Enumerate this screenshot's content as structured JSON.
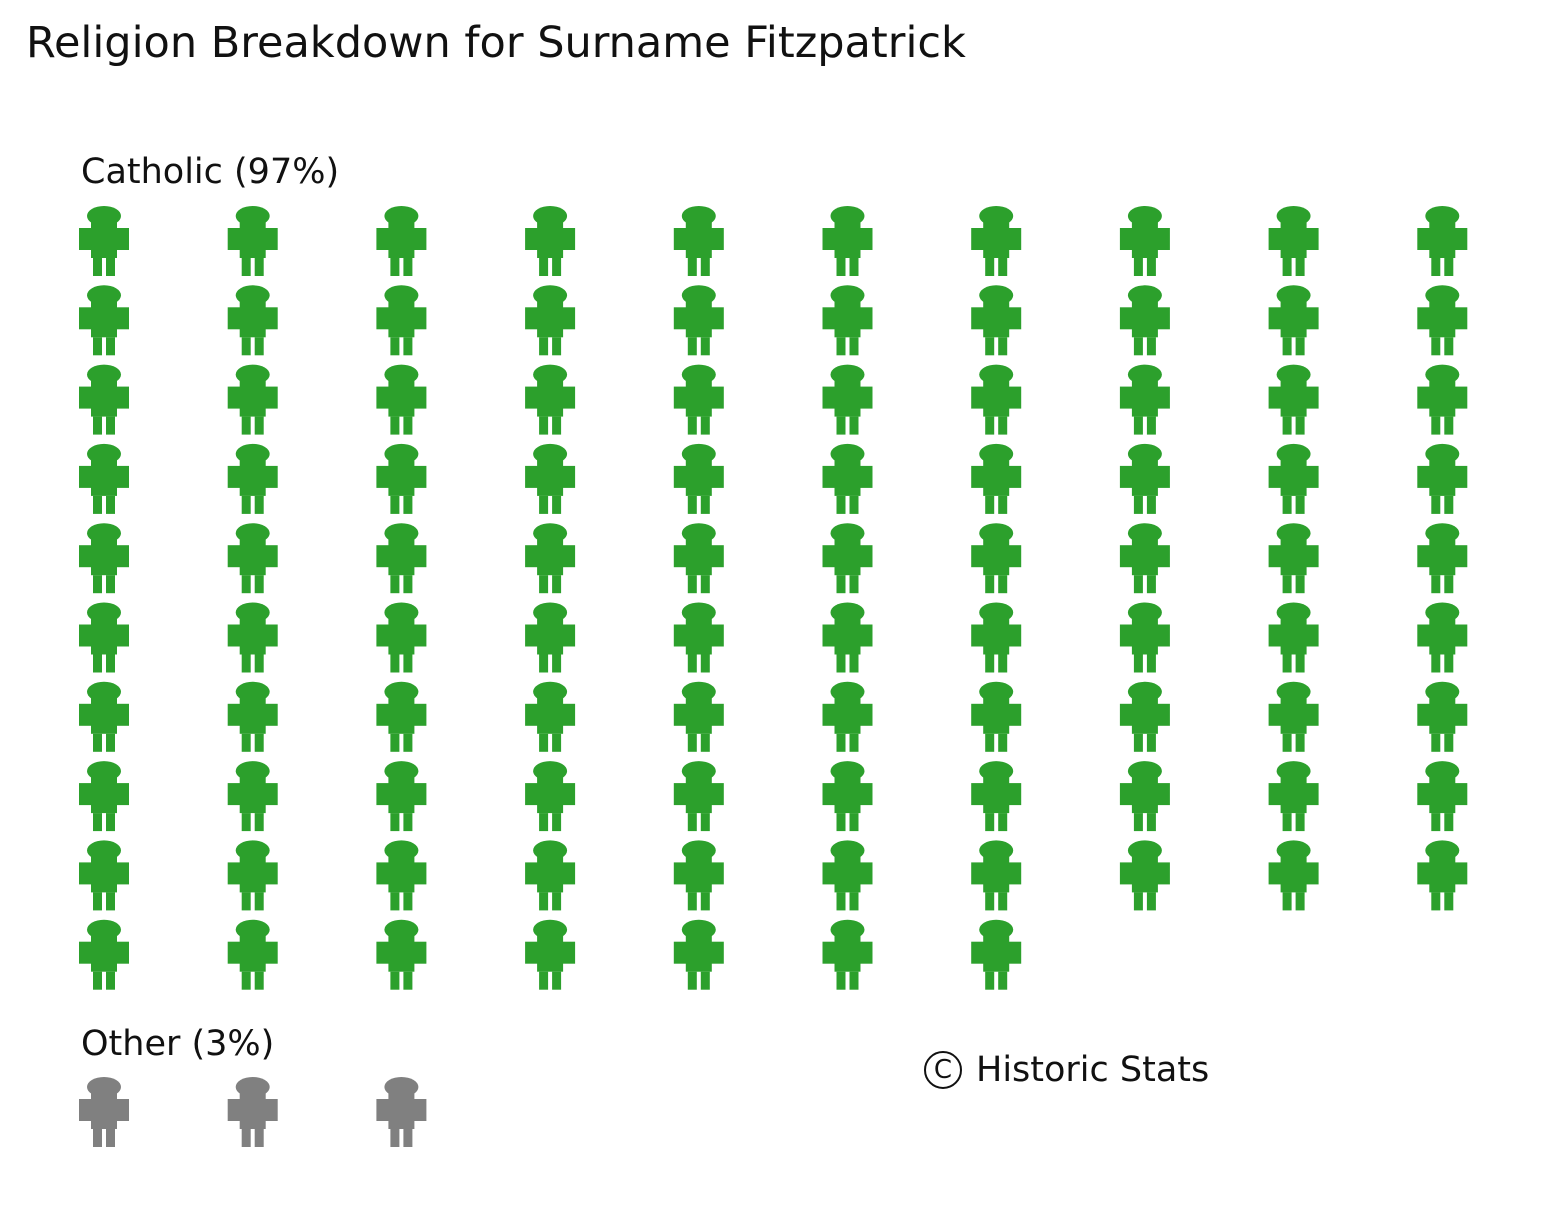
{
  "chart_data": {
    "type": "pictogram",
    "title": "Religion Breakdown for Surname Fitzpatrick",
    "unit": "1 icon = 1%",
    "columns": 10,
    "groups": [
      {
        "name": "Catholic",
        "label": "Catholic (97%)",
        "value": 97,
        "color": "#2ca02c"
      },
      {
        "name": "Other",
        "label": "Other (3%)",
        "value": 3,
        "color": "#808080"
      }
    ],
    "icon": "person-icon"
  },
  "footer": {
    "copyright_symbol": "C",
    "copyright_text": "Historic Stats"
  }
}
